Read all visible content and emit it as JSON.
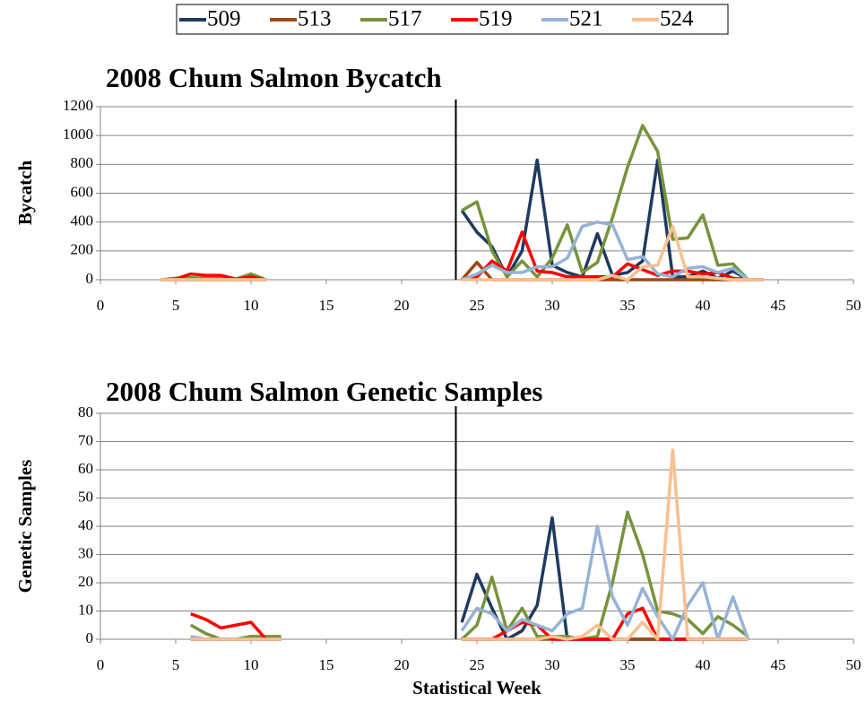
{
  "chart_data": [
    {
      "type": "line",
      "title": "2008 Chum Salmon Bycatch",
      "ylabel": "Bycatch",
      "x": [
        4,
        5,
        6,
        7,
        8,
        9,
        10,
        11,
        12,
        13,
        14,
        15,
        16,
        17,
        18,
        19,
        20,
        21,
        22,
        23,
        24,
        25,
        26,
        27,
        28,
        29,
        30,
        31,
        32,
        33,
        34,
        35,
        36,
        37,
        38,
        39,
        40,
        41,
        42,
        43,
        44
      ],
      "xlim": [
        0,
        50
      ],
      "xticks": [
        0,
        5,
        10,
        15,
        20,
        25,
        30,
        35,
        40,
        45,
        50
      ],
      "ylim": [
        0,
        1200
      ],
      "yticks": [
        0,
        200,
        400,
        600,
        800,
        1000,
        1200
      ],
      "grid": true,
      "vline": 23.6,
      "legend": "top",
      "series": [
        {
          "name": "509",
          "color": "#1f3a5f",
          "values": [
            0,
            0,
            0,
            0,
            0,
            0,
            0,
            0,
            null,
            null,
            null,
            null,
            null,
            null,
            null,
            null,
            null,
            null,
            null,
            null,
            480,
            330,
            230,
            20,
            200,
            830,
            100,
            50,
            20,
            320,
            30,
            50,
            130,
            830,
            20,
            20,
            60,
            10,
            60,
            0,
            0
          ]
        },
        {
          "name": "513",
          "color": "#9c4a12",
          "values": [
            0,
            0,
            0,
            0,
            0,
            0,
            0,
            0,
            null,
            null,
            null,
            null,
            null,
            null,
            null,
            null,
            null,
            null,
            null,
            null,
            0,
            120,
            0,
            0,
            0,
            0,
            0,
            0,
            0,
            0,
            0,
            0,
            0,
            0,
            0,
            0,
            0,
            0,
            0,
            0,
            0
          ]
        },
        {
          "name": "517",
          "color": "#77933c",
          "values": [
            0,
            10,
            15,
            10,
            10,
            5,
            40,
            0,
            null,
            null,
            null,
            null,
            null,
            null,
            null,
            null,
            null,
            null,
            null,
            null,
            480,
            540,
            200,
            20,
            130,
            20,
            150,
            380,
            50,
            120,
            430,
            780,
            1070,
            890,
            280,
            290,
            450,
            100,
            110,
            0,
            0
          ]
        },
        {
          "name": "519",
          "color": "#ff0000",
          "values": [
            0,
            5,
            40,
            30,
            30,
            5,
            20,
            0,
            null,
            null,
            null,
            null,
            null,
            null,
            null,
            null,
            null,
            null,
            null,
            null,
            0,
            20,
            130,
            60,
            330,
            60,
            50,
            20,
            20,
            20,
            20,
            110,
            70,
            30,
            60,
            60,
            40,
            50,
            10,
            0,
            0
          ]
        },
        {
          "name": "521",
          "color": "#95b3d7",
          "values": [
            0,
            0,
            0,
            0,
            0,
            0,
            0,
            0,
            null,
            null,
            null,
            null,
            null,
            null,
            null,
            null,
            null,
            null,
            null,
            null,
            0,
            40,
            100,
            50,
            50,
            90,
            90,
            150,
            370,
            400,
            380,
            140,
            160,
            40,
            20,
            80,
            90,
            50,
            80,
            0,
            0
          ]
        },
        {
          "name": "524",
          "color": "#fac090",
          "values": [
            0,
            0,
            0,
            0,
            0,
            0,
            0,
            0,
            null,
            null,
            null,
            null,
            null,
            null,
            null,
            null,
            null,
            null,
            null,
            null,
            0,
            0,
            0,
            0,
            0,
            0,
            0,
            0,
            0,
            0,
            30,
            0,
            90,
            100,
            370,
            20,
            20,
            10,
            0,
            0,
            0
          ]
        }
      ]
    },
    {
      "type": "line",
      "title": "2008 Chum Salmon Genetic Samples",
      "ylabel": "Genetic Samples",
      "xlabel": "Statistical Week",
      "x": [
        6,
        7,
        8,
        9,
        10,
        11,
        12,
        13,
        14,
        15,
        16,
        17,
        18,
        19,
        20,
        21,
        22,
        23,
        24,
        25,
        26,
        27,
        28,
        29,
        30,
        31,
        32,
        33,
        34,
        35,
        36,
        37,
        38,
        39,
        40,
        41,
        42,
        43
      ],
      "xlim": [
        0,
        50
      ],
      "xticks": [
        0,
        5,
        10,
        15,
        20,
        25,
        30,
        35,
        40,
        45,
        50
      ],
      "ylim": [
        0,
        80
      ],
      "yticks": [
        0,
        10,
        20,
        30,
        40,
        50,
        60,
        70,
        80
      ],
      "grid": true,
      "vline": 23.6,
      "series": [
        {
          "color": "#1f3a5f",
          "values": [
            0,
            0,
            0,
            0,
            0,
            0,
            0,
            null,
            null,
            null,
            null,
            null,
            null,
            null,
            null,
            null,
            null,
            null,
            6,
            23,
            11,
            0,
            3,
            12,
            43,
            0,
            0,
            0,
            0,
            0,
            0,
            0,
            0,
            0,
            0,
            0,
            0,
            0
          ]
        },
        {
          "color": "#9c4a12",
          "values": [
            0,
            0,
            0,
            0,
            0,
            0,
            0,
            null,
            null,
            null,
            null,
            null,
            null,
            null,
            null,
            null,
            null,
            null,
            0,
            0,
            0,
            0,
            0,
            0,
            0,
            0,
            0,
            0,
            0,
            0,
            0,
            0,
            0,
            0,
            0,
            0,
            0,
            0
          ]
        },
        {
          "color": "#77933c",
          "values": [
            5,
            2,
            0,
            0,
            1,
            1,
            1,
            null,
            null,
            null,
            null,
            null,
            null,
            null,
            null,
            null,
            null,
            null,
            0,
            5,
            22,
            3,
            11,
            1,
            1,
            1,
            0,
            1,
            20,
            45,
            30,
            10,
            9,
            7,
            2,
            8,
            5,
            1
          ]
        },
        {
          "color": "#ff0000",
          "values": [
            9,
            7,
            4,
            5,
            6,
            0,
            0,
            null,
            null,
            null,
            null,
            null,
            null,
            null,
            null,
            null,
            null,
            null,
            0,
            0,
            0,
            3,
            6,
            5,
            0,
            0,
            0,
            0,
            0,
            9,
            11,
            0,
            0,
            0,
            0,
            0,
            0,
            0
          ]
        },
        {
          "color": "#95b3d7",
          "values": [
            1,
            0,
            0,
            0,
            0,
            0,
            0,
            null,
            null,
            null,
            null,
            null,
            null,
            null,
            null,
            null,
            null,
            null,
            3,
            11,
            9,
            3,
            7,
            5,
            3,
            9,
            11,
            40,
            15,
            5,
            18,
            8,
            0,
            12,
            20,
            0,
            15,
            0
          ]
        },
        {
          "color": "#fac090",
          "values": [
            0,
            0,
            0,
            0,
            0,
            0,
            0,
            null,
            null,
            null,
            null,
            null,
            null,
            null,
            null,
            null,
            null,
            null,
            0,
            0,
            0,
            0,
            0,
            0,
            1,
            0,
            1,
            5,
            0,
            0,
            6,
            0,
            67,
            0,
            0,
            0,
            0,
            0
          ]
        }
      ]
    }
  ]
}
